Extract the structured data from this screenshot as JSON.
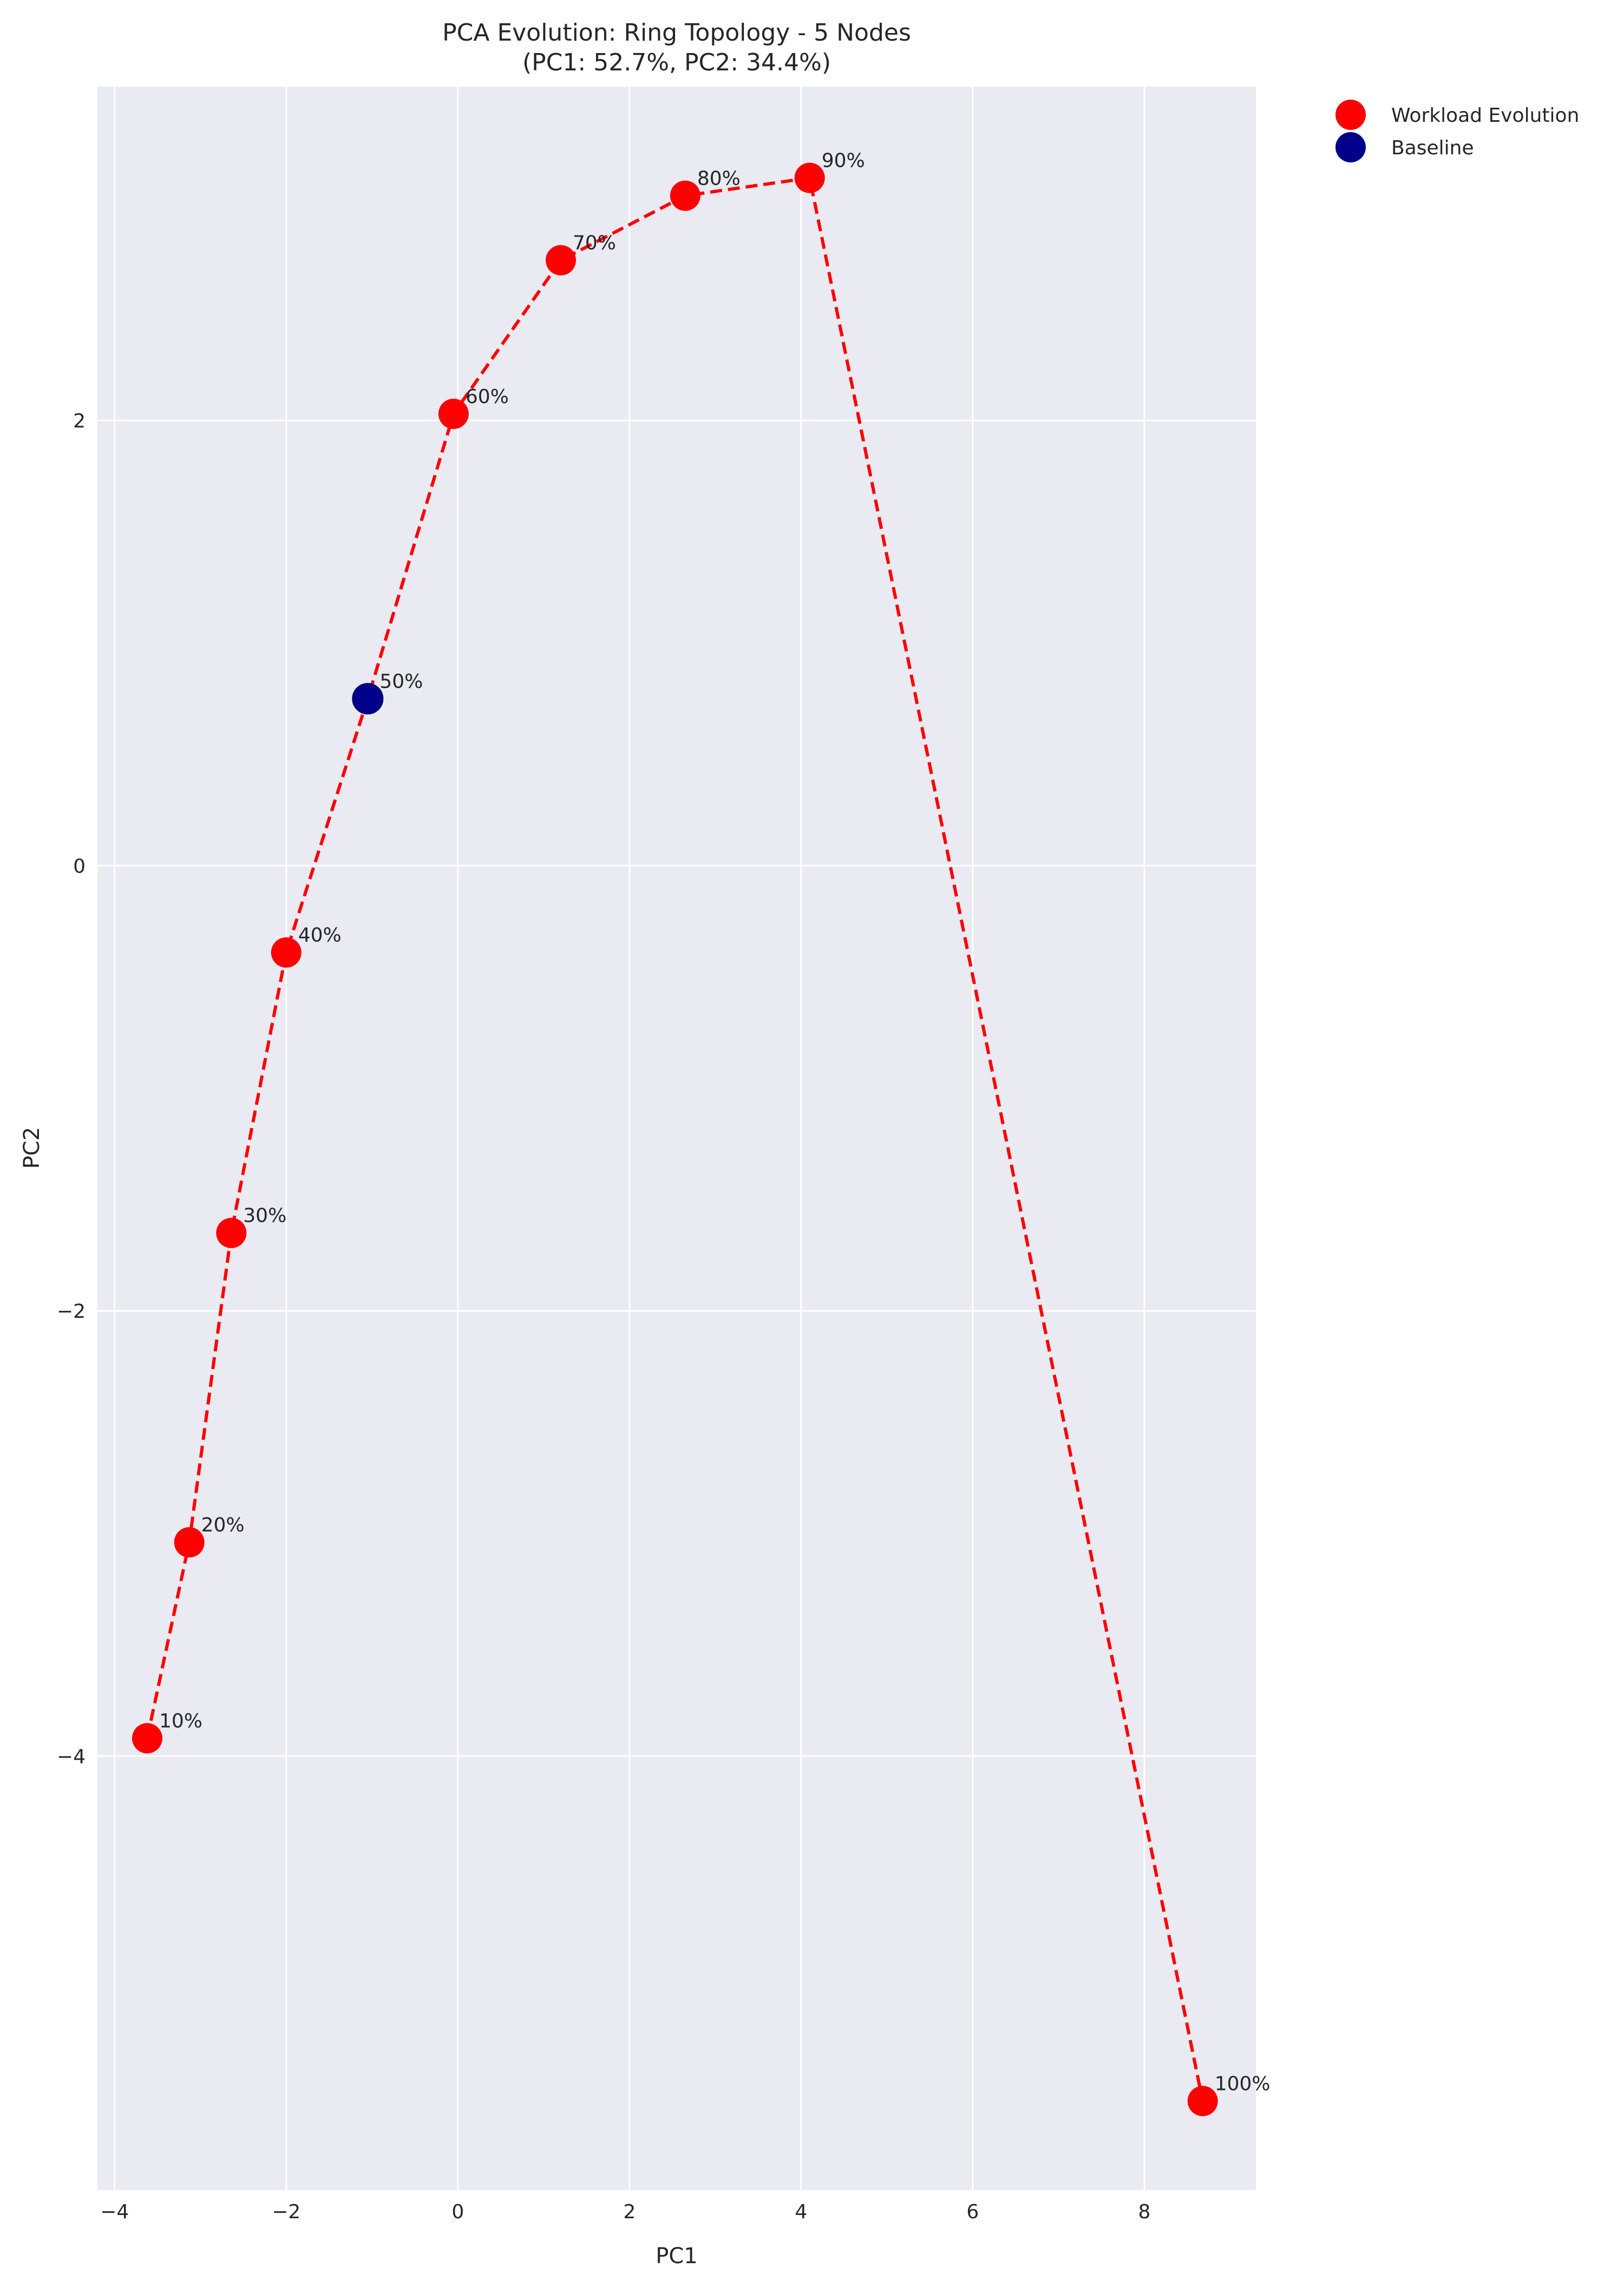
{
  "chart_data": {
    "type": "scatter",
    "title": "PCA Evolution: Ring Topology - 5 Nodes",
    "subtitle": "(PC1: 52.7%, PC2: 34.4%)",
    "xlabel": "PC1",
    "ylabel": "PC2",
    "xlim": [
      -4.2,
      9.3
    ],
    "ylim": [
      -5.95,
      3.5
    ],
    "xticks": [
      -4,
      -2,
      0,
      2,
      4,
      6,
      8
    ],
    "yticks": [
      -4,
      -2,
      0,
      2
    ],
    "xtick_labels": [
      "−4",
      "−2",
      "0",
      "2",
      "4",
      "6",
      "8"
    ],
    "ytick_labels": [
      "−4",
      "−2",
      "0",
      "2"
    ],
    "grid": true,
    "legend_position": "outside-top-right",
    "colors": {
      "background": "#eaeaf2",
      "workload": "#ff0000",
      "baseline": "#00008b",
      "line": "#ff0000"
    },
    "series": [
      {
        "name": "Workload Evolution",
        "points": [
          {
            "label": "10%",
            "x": -3.62,
            "y": -3.92
          },
          {
            "label": "20%",
            "x": -3.13,
            "y": -3.04
          },
          {
            "label": "30%",
            "x": -2.64,
            "y": -1.65
          },
          {
            "label": "40%",
            "x": -2.0,
            "y": -0.39
          },
          {
            "label": "60%",
            "x": -0.05,
            "y": 2.03
          },
          {
            "label": "70%",
            "x": 1.2,
            "y": 2.72
          },
          {
            "label": "80%",
            "x": 2.65,
            "y": 3.01
          },
          {
            "label": "90%",
            "x": 4.1,
            "y": 3.09
          },
          {
            "label": "100%",
            "x": 8.68,
            "y": -5.55
          }
        ]
      },
      {
        "name": "Baseline",
        "points": [
          {
            "label": "50%",
            "x": -1.05,
            "y": 0.75
          }
        ]
      }
    ],
    "path_order": [
      "10%",
      "20%",
      "30%",
      "40%",
      "50%",
      "60%",
      "70%",
      "80%",
      "90%",
      "100%"
    ]
  }
}
